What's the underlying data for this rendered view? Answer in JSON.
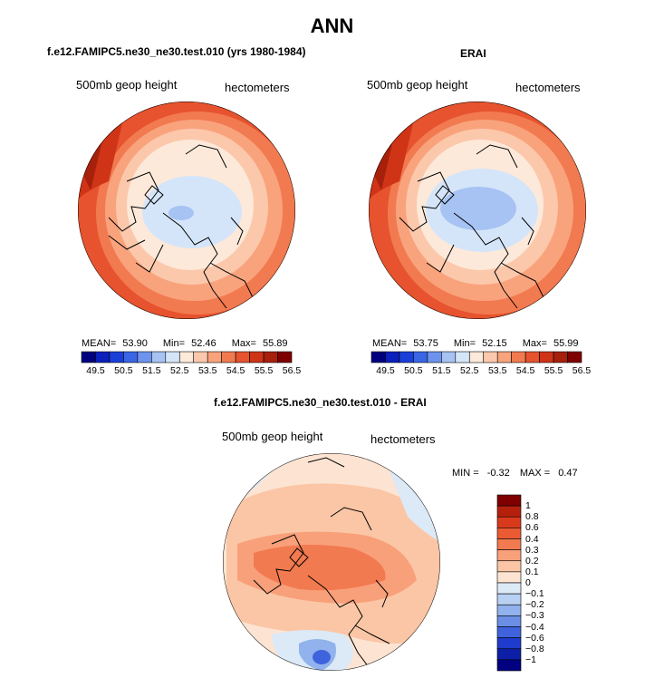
{
  "main_title": "ANN",
  "panels": [
    {
      "title": "f.e12.FAMIPC5.ne30_ne30.test.010 (yrs 1980-1984)",
      "left_label": "500mb geop height",
      "right_label": "hectometers",
      "stats": {
        "mean_label": "MEAN=",
        "mean": "53.90",
        "min_label": "Min=",
        "min": "52.46",
        "max_label": "Max=",
        "max": "55.89"
      }
    },
    {
      "title": "ERAI",
      "left_label": "500mb geop height",
      "right_label": "hectometers",
      "stats": {
        "mean_label": "MEAN=",
        "mean": "53.75",
        "min_label": "Min=",
        "min": "52.15",
        "max_label": "Max=",
        "max": "55.99"
      }
    }
  ],
  "abs_colorbar": {
    "ticks": [
      "49.5",
      "50.5",
      "51.5",
      "52.5",
      "53.5",
      "54.5",
      "55.5",
      "56.5"
    ],
    "colors": [
      "#00007f",
      "#0a1fbb",
      "#1a3fd9",
      "#3a66e6",
      "#6c93ee",
      "#a6c3f3",
      "#d5e5f9",
      "#fde9da",
      "#fcc8ab",
      "#f9a37d",
      "#f27a50",
      "#e6532e",
      "#cf3417",
      "#a6200c",
      "#7f0000"
    ]
  },
  "diff_panel": {
    "title": "f.e12.FAMIPC5.ne30_ne30.test.010 - ERAI",
    "left_label": "500mb geop height",
    "right_label": "hectometers",
    "minmax": {
      "min_label": "MIN =",
      "min": "-0.32",
      "max_label": "MAX =",
      "max": "0.47"
    }
  },
  "diff_colorbar": {
    "ticks": [
      "1",
      "0.8",
      "0.6",
      "0.4",
      "0.3",
      "0.2",
      "0.1",
      "0",
      "−0.1",
      "−0.2",
      "−0.3",
      "−0.4",
      "−0.6",
      "−0.8",
      "−1"
    ],
    "colors": [
      "#7f0000",
      "#b5200c",
      "#d93a1c",
      "#ec5a34",
      "#f27a50",
      "#f8a07a",
      "#fbc6a6",
      "#fde4d2",
      "#dce9f7",
      "#b8d0f2",
      "#91b2ec",
      "#6a8fe5",
      "#3f63dc",
      "#1f3bcc",
      "#0c1fa6",
      "#000080"
    ]
  }
}
